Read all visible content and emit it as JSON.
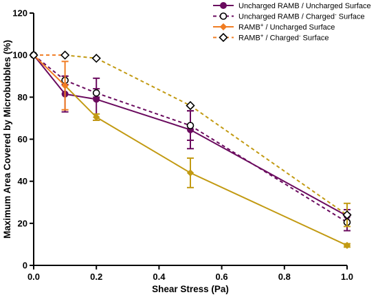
{
  "chart_data": {
    "type": "line",
    "xlabel": "Shear Stress (Pa)",
    "ylabel": "Maximum Area Covered by Microbubbles (%)",
    "xlim": [
      0.0,
      1.0
    ],
    "ylim": [
      0,
      120
    ],
    "xticks": [
      0.0,
      0.2,
      0.4,
      0.6,
      0.8,
      1.0
    ],
    "xtick_labels": [
      "0.0",
      "0.2",
      "0.4",
      "0.6",
      "0.8",
      "1.0"
    ],
    "yticks": [
      0,
      20,
      40,
      60,
      80,
      100,
      120
    ],
    "ytick_labels": [
      "0",
      "20",
      "40",
      "60",
      "80",
      "100",
      "120"
    ],
    "grid": false,
    "legend_position": "top-right",
    "series": [
      {
        "legend_main": "Uncharged RAMB / Uncharged Surface",
        "legend_sup": "",
        "legend_tail": "",
        "color": "#6a0a5e",
        "dash": "solid",
        "marker": "filled-circle",
        "x": [
          0.0,
          0.1,
          0.2,
          0.5,
          1.0
        ],
        "y": [
          100,
          81.5,
          79,
          64.5,
          23.5
        ],
        "err": [
          0,
          8.5,
          10,
          9,
          3
        ]
      },
      {
        "legend_main": "Uncharged RAMB / Charged",
        "legend_sup": "-",
        "legend_tail": " Surface",
        "color": "#6a0a5e",
        "dash": "dashed",
        "marker": "open-circle",
        "x": [
          0.0,
          0.1,
          0.2,
          0.5,
          1.0
        ],
        "y": [
          100,
          88,
          82,
          66.5,
          20.5
        ],
        "err": [
          0,
          2,
          2,
          7,
          4
        ]
      },
      {
        "legend_main": "RAMB",
        "legend_sup": "+",
        "legend_tail": " / Uncharged Surface",
        "color": "#f07c22",
        "color_late": "#c29a12",
        "dash": "solid",
        "marker": "filled-diamond",
        "x": [
          0.0,
          0.1,
          0.2,
          0.5,
          1.0
        ],
        "y": [
          100,
          85.5,
          70.5,
          44,
          9.5
        ],
        "err": [
          0,
          11.5,
          1.5,
          7,
          0.8
        ]
      },
      {
        "legend_main": "RAMB",
        "legend_sup": "+",
        "legend_tail": " / Charged",
        "legend_sup2": "-",
        "legend_tail2": " Surface",
        "color": "#f07c22",
        "color_late": "#c29a12",
        "dash": "dashed",
        "marker": "open-diamond",
        "x": [
          0.0,
          0.1,
          0.2,
          0.5,
          1.0
        ],
        "y": [
          100,
          100,
          98.5,
          76,
          24
        ],
        "err": [
          0,
          0,
          0,
          0,
          5.5
        ]
      }
    ]
  }
}
